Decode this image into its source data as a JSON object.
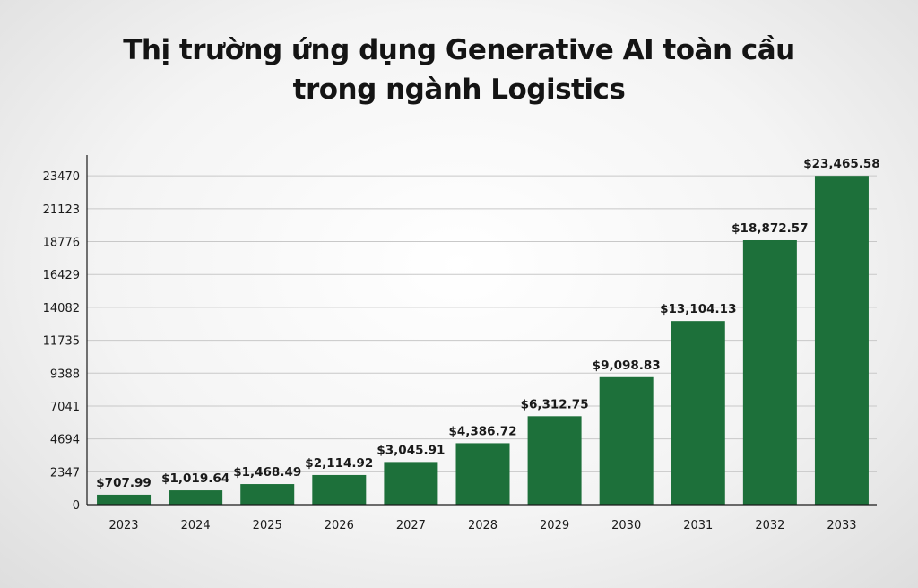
{
  "title": {
    "line1": "Thị trường ứng dụng Generative AI toàn cầu",
    "line2": "trong ngành Logistics"
  },
  "colors": {
    "bar": "#1d703a",
    "grid": "#c8c8c8",
    "axis": "#1a1a1a"
  },
  "chart_data": {
    "type": "bar",
    "title": "Thị trường ứng dụng Generative AI toàn cầu trong ngành Logistics",
    "categories": [
      "2023",
      "2024",
      "2025",
      "2026",
      "2027",
      "2028",
      "2029",
      "2030",
      "2031",
      "2032",
      "2033"
    ],
    "values": [
      707.99,
      1019.64,
      1468.49,
      2114.92,
      3045.91,
      4386.72,
      6312.75,
      9098.83,
      13104.13,
      18872.57,
      23465.58
    ],
    "data_labels": [
      "$707.99",
      "$1,019.64",
      "$1,468.49",
      "$2,114.92",
      "$3,045.91",
      "$4,386.72",
      "$6,312.75",
      "$9,098.83",
      "$13,104.13",
      "$18,872.57",
      "$23,465.58"
    ],
    "yticks": [
      0,
      2347,
      4694,
      7041,
      9388,
      11735,
      14082,
      16429,
      18776,
      21123,
      23470
    ],
    "ylim": [
      0,
      24950
    ],
    "xlabel": "",
    "ylabel": "",
    "grid": true,
    "legend": "none"
  }
}
